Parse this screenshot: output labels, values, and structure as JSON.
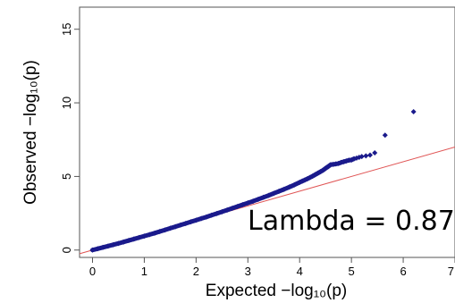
{
  "chart_data": {
    "type": "scatter",
    "xlabel": "Expected −log₁₀(p)",
    "ylabel": "Observed −log₁₀(p)",
    "xlim": [
      -0.25,
      7
    ],
    "ylim": [
      -0.5,
      16.5
    ],
    "x_ticks": [
      "0",
      "1",
      "2",
      "3",
      "4",
      "5",
      "6",
      "7"
    ],
    "y_ticks": [
      "0",
      "5",
      "10",
      "15"
    ],
    "annotation": "Lambda = 0.87",
    "reference_line": {
      "x": [
        -0.25,
        7
      ],
      "y": [
        -0.25,
        7
      ]
    },
    "series": [
      {
        "points": [
          [
            0.0,
            0.0
          ],
          [
            0.1,
            0.09
          ],
          [
            0.2,
            0.18
          ],
          [
            0.3,
            0.27
          ],
          [
            0.4,
            0.36
          ],
          [
            0.5,
            0.45
          ],
          [
            0.6,
            0.55
          ],
          [
            0.7,
            0.65
          ],
          [
            0.8,
            0.75
          ],
          [
            0.9,
            0.85
          ],
          [
            1.0,
            0.95
          ],
          [
            1.1,
            1.05
          ],
          [
            1.2,
            1.15
          ],
          [
            1.3,
            1.26
          ],
          [
            1.4,
            1.37
          ],
          [
            1.5,
            1.48
          ],
          [
            1.6,
            1.59
          ],
          [
            1.7,
            1.7
          ],
          [
            1.8,
            1.81
          ],
          [
            1.9,
            1.92
          ],
          [
            2.0,
            2.03
          ],
          [
            2.1,
            2.14
          ],
          [
            2.2,
            2.25
          ],
          [
            2.3,
            2.37
          ],
          [
            2.4,
            2.48
          ],
          [
            2.5,
            2.6
          ],
          [
            2.6,
            2.72
          ],
          [
            2.7,
            2.84
          ],
          [
            2.8,
            2.96
          ],
          [
            2.9,
            3.08
          ],
          [
            3.0,
            3.2
          ],
          [
            3.1,
            3.32
          ],
          [
            3.2,
            3.45
          ],
          [
            3.3,
            3.58
          ],
          [
            3.4,
            3.71
          ],
          [
            3.5,
            3.85
          ],
          [
            3.6,
            3.99
          ],
          [
            3.7,
            4.13
          ],
          [
            3.8,
            4.28
          ],
          [
            3.9,
            4.43
          ],
          [
            4.0,
            4.6
          ],
          [
            4.05,
            4.68
          ],
          [
            4.1,
            4.76
          ],
          [
            4.15,
            4.84
          ],
          [
            4.2,
            4.93
          ],
          [
            4.25,
            5.02
          ],
          [
            4.3,
            5.12
          ],
          [
            4.35,
            5.22
          ],
          [
            4.4,
            5.32
          ],
          [
            4.45,
            5.42
          ],
          [
            4.5,
            5.55
          ],
          [
            4.55,
            5.67
          ],
          [
            4.6,
            5.8
          ],
          [
            4.65,
            5.82
          ],
          [
            4.7,
            5.85
          ],
          [
            4.75,
            5.88
          ],
          [
            4.8,
            5.95
          ],
          [
            4.85,
            6.0
          ],
          [
            4.9,
            6.05
          ],
          [
            4.95,
            6.1
          ],
          [
            5.0,
            6.12
          ],
          [
            5.05,
            6.2
          ],
          [
            5.1,
            6.25
          ],
          [
            5.15,
            6.3
          ],
          [
            5.2,
            6.35
          ],
          [
            5.28,
            6.4
          ],
          [
            5.36,
            6.45
          ],
          [
            5.45,
            6.6
          ],
          [
            5.65,
            7.8
          ],
          [
            6.2,
            9.4
          ]
        ],
        "color": "#1a1a8c"
      }
    ],
    "line_color": "#e05555"
  }
}
